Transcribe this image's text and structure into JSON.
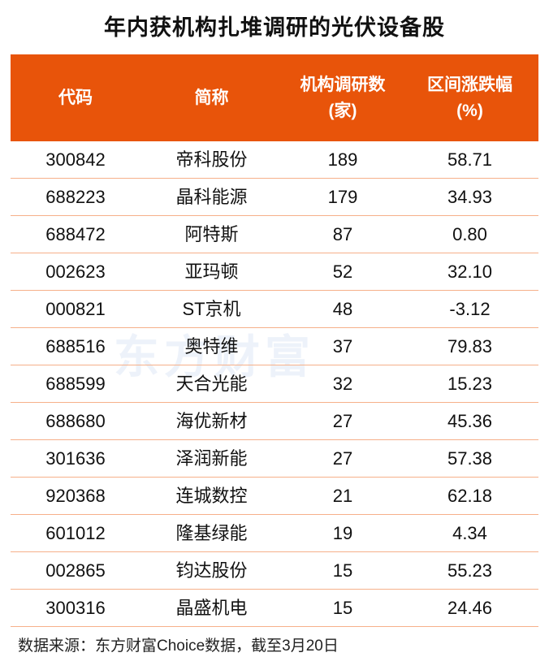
{
  "title": "年内获机构扎堆调研的光伏设备股",
  "colors": {
    "header_bg": "#e8540a",
    "header_text": "#ffffff",
    "row_divider": "#f6b08a"
  },
  "watermark": "东方财富",
  "chart_data": {
    "type": "table",
    "columns": [
      {
        "line1": "代码",
        "line2": ""
      },
      {
        "line1": "简称",
        "line2": ""
      },
      {
        "line1": "机构调研数",
        "line2": "(家)"
      },
      {
        "line1": "区间涨跌幅",
        "line2": "(%)"
      }
    ],
    "rows": [
      [
        "300842",
        "帝科股份",
        "189",
        "58.71"
      ],
      [
        "688223",
        "晶科能源",
        "179",
        "34.93"
      ],
      [
        "688472",
        "阿特斯",
        "87",
        "0.80"
      ],
      [
        "002623",
        "亚玛顿",
        "52",
        "32.10"
      ],
      [
        "000821",
        "ST京机",
        "48",
        "-3.12"
      ],
      [
        "688516",
        "奥特维",
        "37",
        "79.83"
      ],
      [
        "688599",
        "天合光能",
        "32",
        "15.23"
      ],
      [
        "688680",
        "海优新材",
        "27",
        "45.36"
      ],
      [
        "301636",
        "泽润新能",
        "27",
        "57.38"
      ],
      [
        "920368",
        "连城数控",
        "21",
        "62.18"
      ],
      [
        "601012",
        "隆基绿能",
        "19",
        "4.34"
      ],
      [
        "002865",
        "钧达股份",
        "15",
        "55.23"
      ],
      [
        "300316",
        "晶盛机电",
        "15",
        "24.46"
      ]
    ]
  },
  "source": "数据来源：东方财富Choice数据，截至3月20日"
}
